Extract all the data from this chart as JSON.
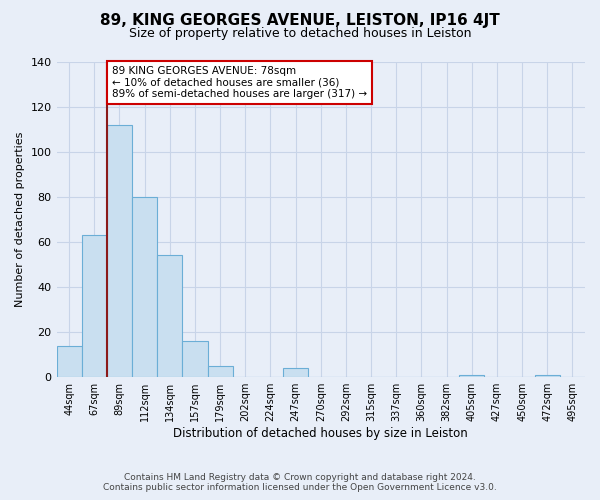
{
  "title": "89, KING GEORGES AVENUE, LEISTON, IP16 4JT",
  "subtitle": "Size of property relative to detached houses in Leiston",
  "xlabel": "Distribution of detached houses by size in Leiston",
  "ylabel": "Number of detached properties",
  "bar_labels": [
    "44sqm",
    "67sqm",
    "89sqm",
    "112sqm",
    "134sqm",
    "157sqm",
    "179sqm",
    "202sqm",
    "224sqm",
    "247sqm",
    "270sqm",
    "292sqm",
    "315sqm",
    "337sqm",
    "360sqm",
    "382sqm",
    "405sqm",
    "427sqm",
    "450sqm",
    "472sqm",
    "495sqm"
  ],
  "bar_values": [
    14,
    63,
    112,
    80,
    54,
    16,
    5,
    0,
    0,
    4,
    0,
    0,
    0,
    0,
    0,
    0,
    1,
    0,
    0,
    1,
    0
  ],
  "bar_color": "#c9dff0",
  "bar_edge_color": "#6baed6",
  "highlight_bar_index": 2,
  "highlight_line_color": "#8b1a1a",
  "ylim": [
    0,
    140
  ],
  "yticks": [
    0,
    20,
    40,
    60,
    80,
    100,
    120,
    140
  ],
  "annotation_title": "89 KING GEORGES AVENUE: 78sqm",
  "annotation_line1": "← 10% of detached houses are smaller (36)",
  "annotation_line2": "89% of semi-detached houses are larger (317) →",
  "annotation_box_color": "#ffffff",
  "annotation_box_edge": "#cc0000",
  "footer_line1": "Contains HM Land Registry data © Crown copyright and database right 2024.",
  "footer_line2": "Contains public sector information licensed under the Open Government Licence v3.0.",
  "background_color": "#e8eef8",
  "plot_bg_color": "#e8eef8",
  "grid_color": "#c8d4e8"
}
